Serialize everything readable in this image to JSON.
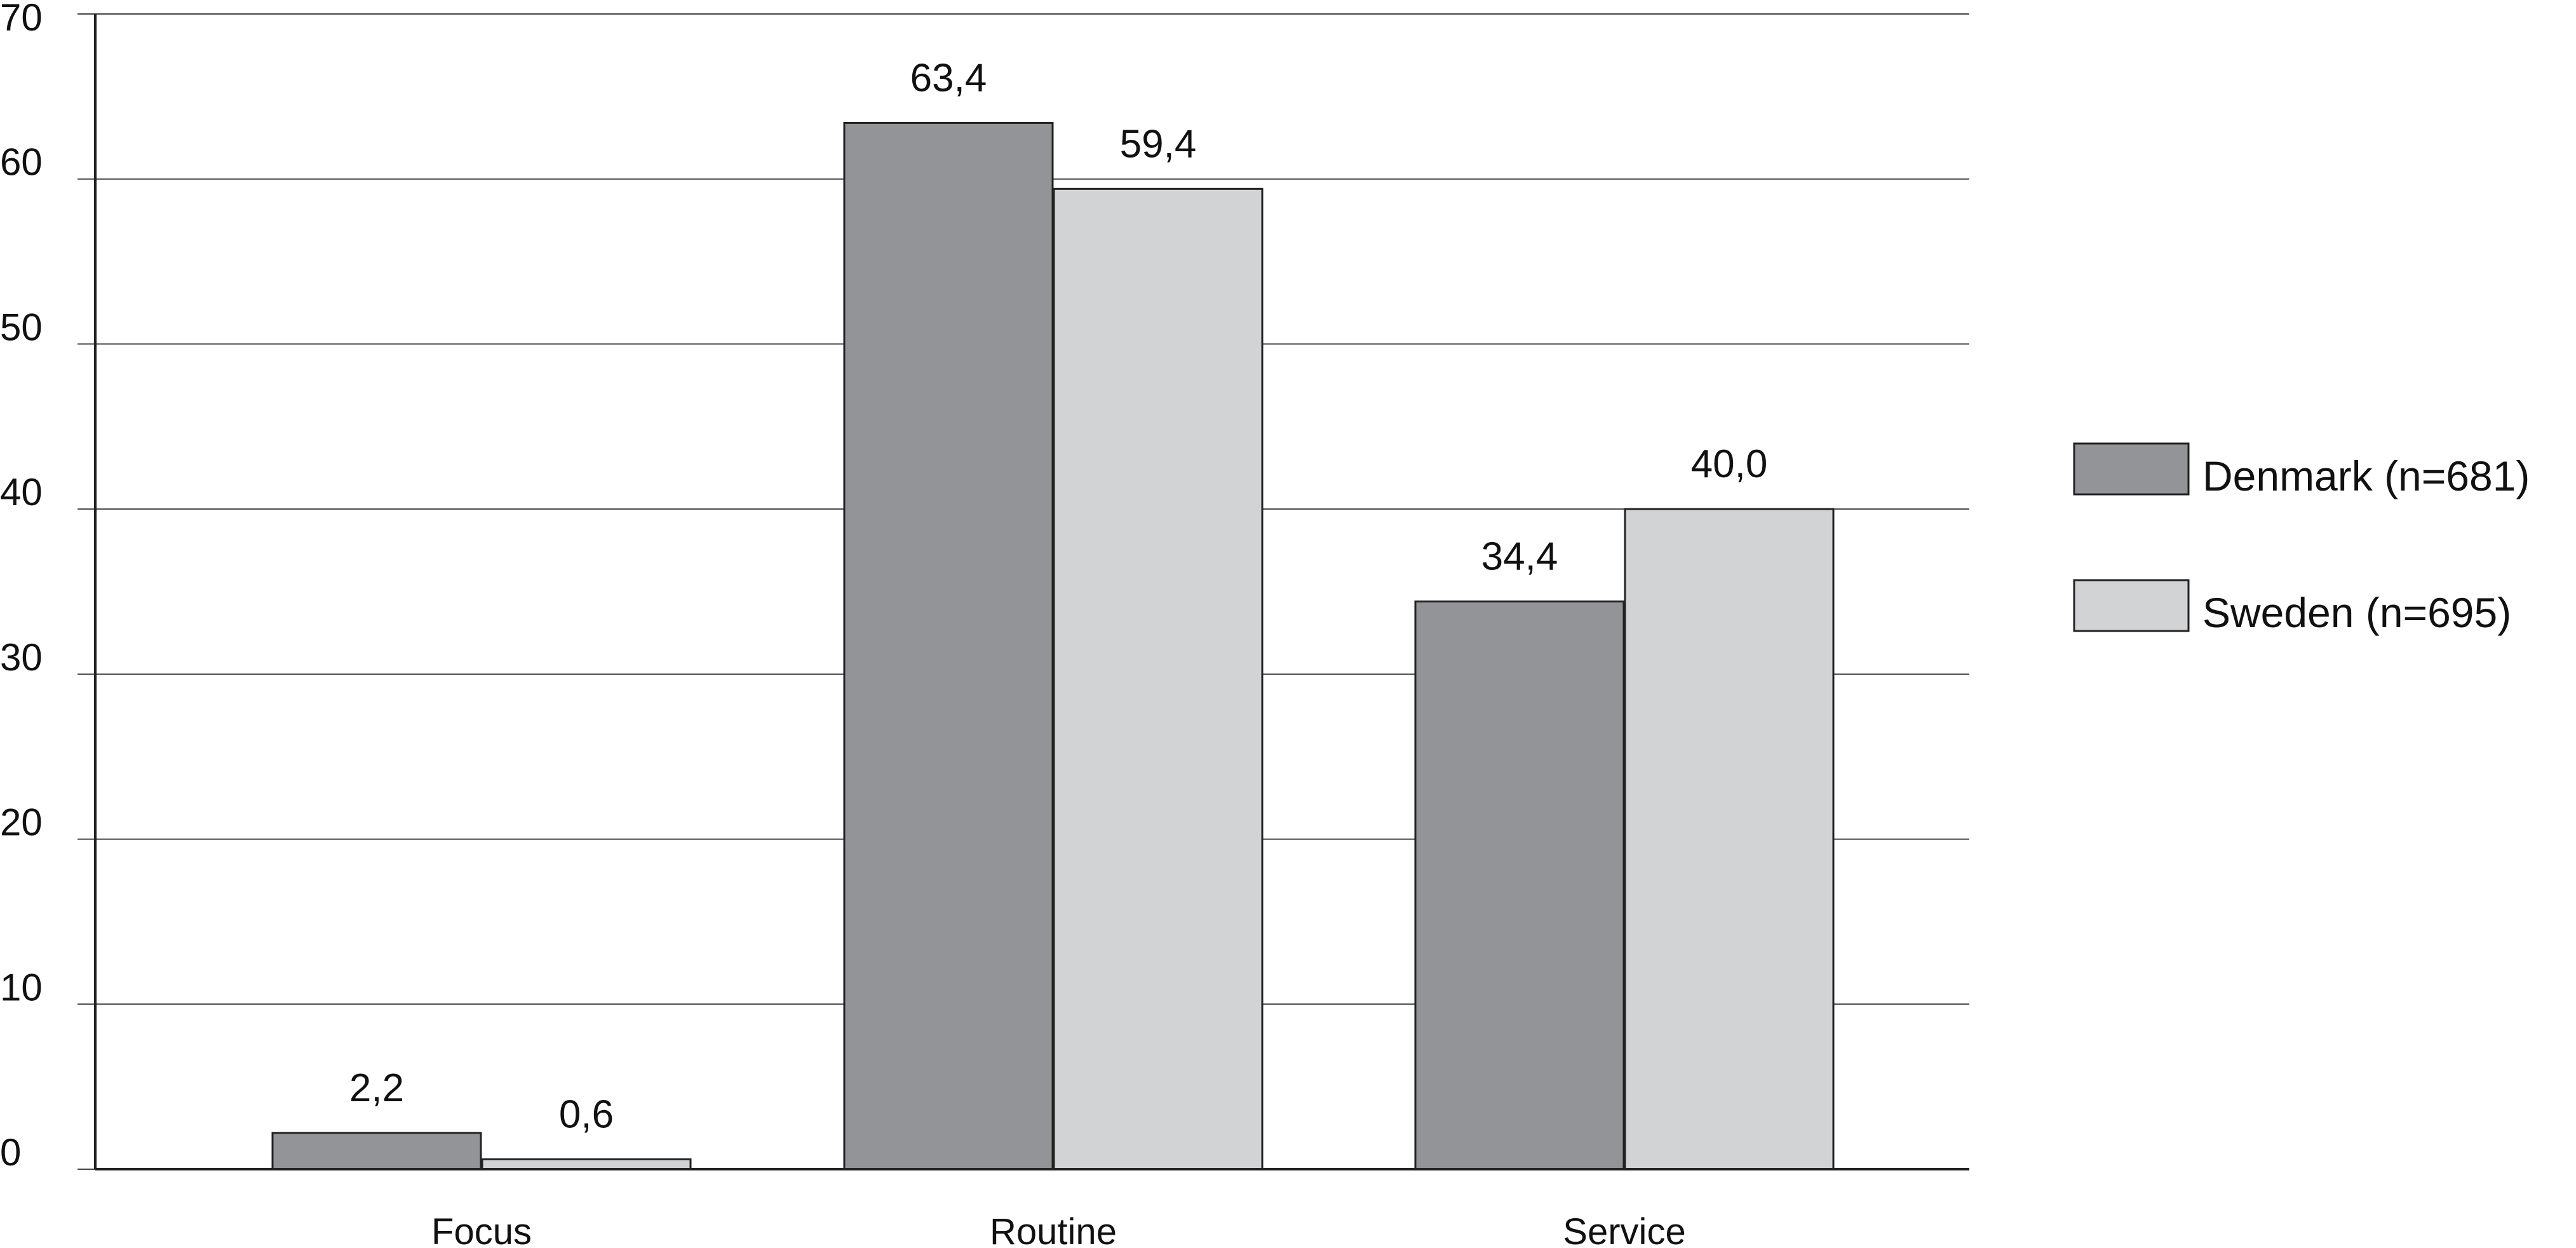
{
  "chart_data": {
    "type": "bar",
    "categories": [
      "Focus",
      "Routine",
      "Service"
    ],
    "series": [
      {
        "name": "Denmark (n=681)",
        "values": [
          2.2,
          63.4,
          34.4
        ],
        "labels": [
          "2,2",
          "63,4",
          "34,4"
        ],
        "color": "#939497"
      },
      {
        "name": "Sweden (n=695)",
        "values": [
          0.6,
          59.4,
          40.0
        ],
        "labels": [
          "0,6",
          "59,4",
          "40,0"
        ],
        "color": "#d2d3d5"
      }
    ],
    "ylim": [
      0,
      70
    ],
    "yticks": [
      0,
      10,
      20,
      30,
      40,
      50,
      60,
      70
    ],
    "ytick_labels": [
      "0",
      "10",
      "20",
      "30",
      "40",
      "50",
      "60",
      "70"
    ],
    "grid": true,
    "legend_position": "right"
  }
}
